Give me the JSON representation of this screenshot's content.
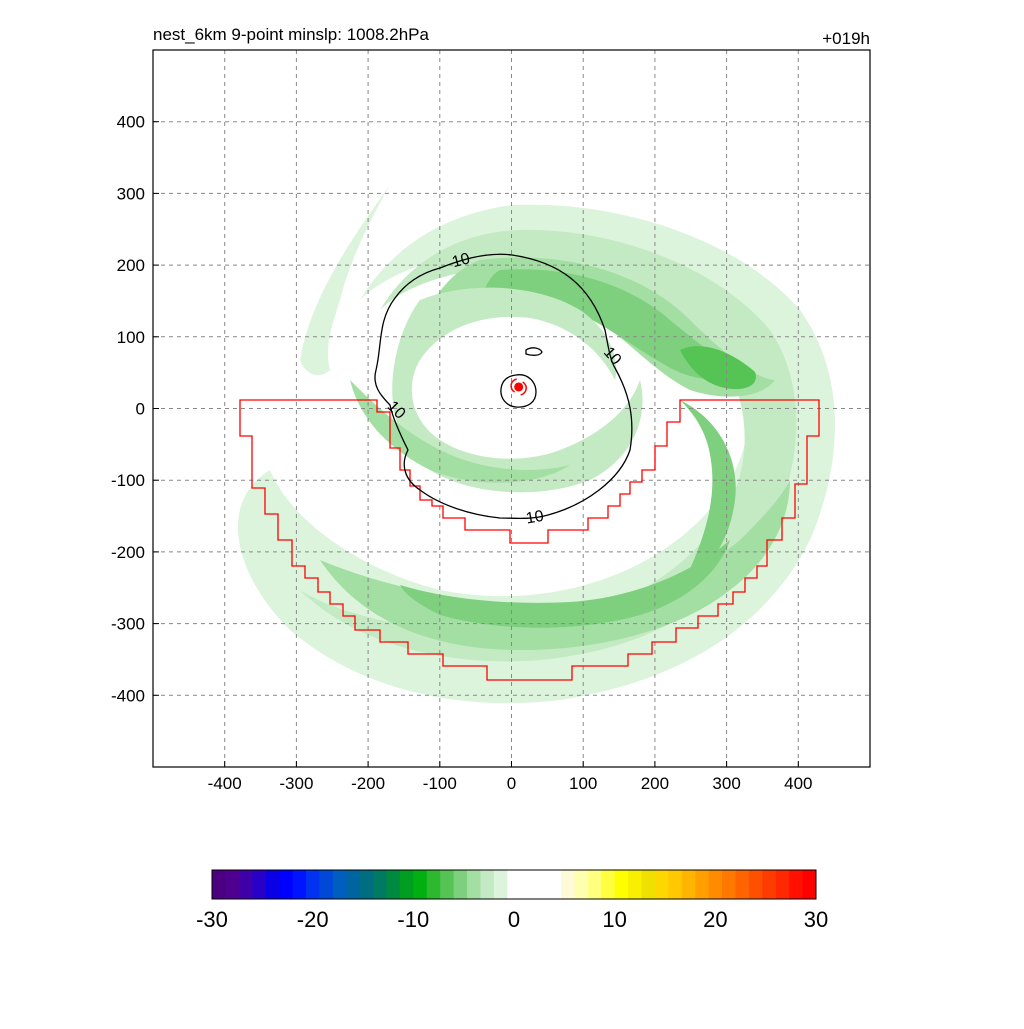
{
  "chart_data": {
    "type": "heatmap",
    "title": "nest_6km  9-point minslp: 1008.2hPa",
    "time_label": "+019h",
    "xlabel": "",
    "ylabel": "",
    "xlim": [
      -500,
      500
    ],
    "ylim": [
      -500,
      500
    ],
    "x_ticks": [
      -400,
      -300,
      -200,
      -100,
      0,
      100,
      200,
      300,
      400
    ],
    "y_ticks": [
      -400,
      -300,
      -200,
      -100,
      0,
      100,
      200,
      300,
      400
    ],
    "grid": true,
    "storm_center": {
      "x": 10,
      "y": 30
    },
    "contour_label": "10",
    "contour_level": 10,
    "colorbar": {
      "min": -30,
      "max": 30,
      "ticks": [
        -30,
        -20,
        -10,
        0,
        10,
        20,
        30
      ],
      "colors": [
        "#4b0082",
        "#4f0091",
        "#4000a8",
        "#2800c8",
        "#0a00e6",
        "#0000ff",
        "#0014ff",
        "#0032f0",
        "#0048d8",
        "#005ec0",
        "#0064a0",
        "#006e80",
        "#007a60",
        "#008a40",
        "#009e20",
        "#00b010",
        "#2eb82e",
        "#55c455",
        "#7ed07e",
        "#a3dea3",
        "#c3eac3",
        "#dcf4dc",
        "#ffffff",
        "#ffffff",
        "#ffffff",
        "#ffffff",
        "#fffbd8",
        "#ffffb0",
        "#ffff80",
        "#ffff40",
        "#ffff00",
        "#f8f000",
        "#f0e000",
        "#ffd700",
        "#ffc800",
        "#ffb400",
        "#ffa000",
        "#ff8c00",
        "#ff7800",
        "#ff6400",
        "#ff5000",
        "#ff3c00",
        "#ff2800",
        "#ff1000",
        "#ff0000"
      ]
    }
  }
}
